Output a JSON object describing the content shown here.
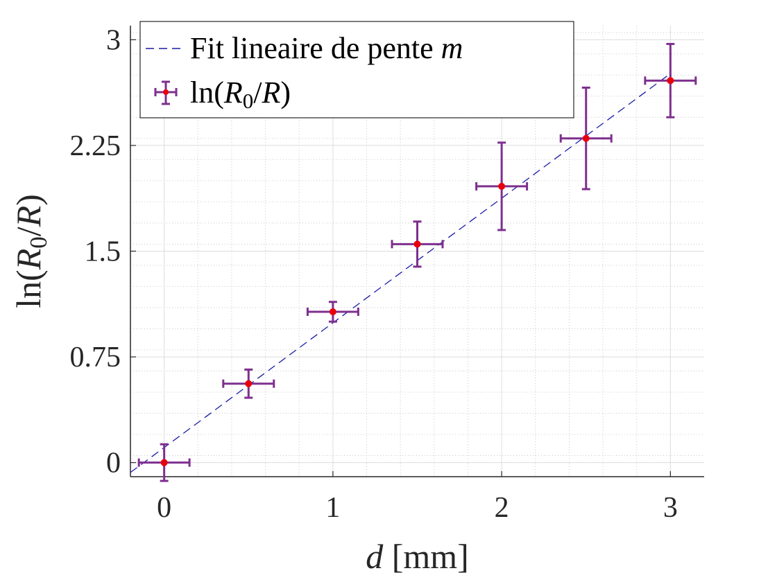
{
  "chart_data": {
    "type": "scatter",
    "title": "",
    "xlabel": "d [mm]",
    "ylabel": "ln(R0/R)",
    "xlim": [
      -0.2,
      3.2
    ],
    "ylim": [
      -0.1,
      3.1
    ],
    "x_ticks": [
      "0",
      "1",
      "2",
      "3"
    ],
    "y_ticks": [
      "0",
      "0.75",
      "1.5",
      "2.25",
      "3"
    ],
    "grid": true,
    "minor_grid": true,
    "legend_position": "top-left",
    "series": [
      {
        "name": "Fit lineaire de pente m",
        "kind": "line",
        "style": "dashed",
        "color": "#1a1aa6",
        "x": [
          -0.2,
          3.0
        ],
        "y": [
          -0.07,
          2.76
        ]
      },
      {
        "name": "ln(R0/R)",
        "kind": "errorbar",
        "marker_color": "#e8000b",
        "errorbar_color": "#7e2f8e",
        "points": [
          {
            "x": 0.0,
            "y": 0.0,
            "xerr": 0.15,
            "yerr": 0.13
          },
          {
            "x": 0.5,
            "y": 0.56,
            "xerr": 0.15,
            "yerr": 0.1
          },
          {
            "x": 1.0,
            "y": 1.07,
            "xerr": 0.15,
            "yerr": 0.07
          },
          {
            "x": 1.5,
            "y": 1.55,
            "xerr": 0.15,
            "yerr": 0.16
          },
          {
            "x": 2.0,
            "y": 1.96,
            "xerr": 0.15,
            "yerr": 0.31
          },
          {
            "x": 2.5,
            "y": 2.3,
            "xerr": 0.15,
            "yerr": 0.36
          },
          {
            "x": 3.0,
            "y": 2.71,
            "xerr": 0.15,
            "yerr": 0.26
          }
        ]
      }
    ]
  }
}
